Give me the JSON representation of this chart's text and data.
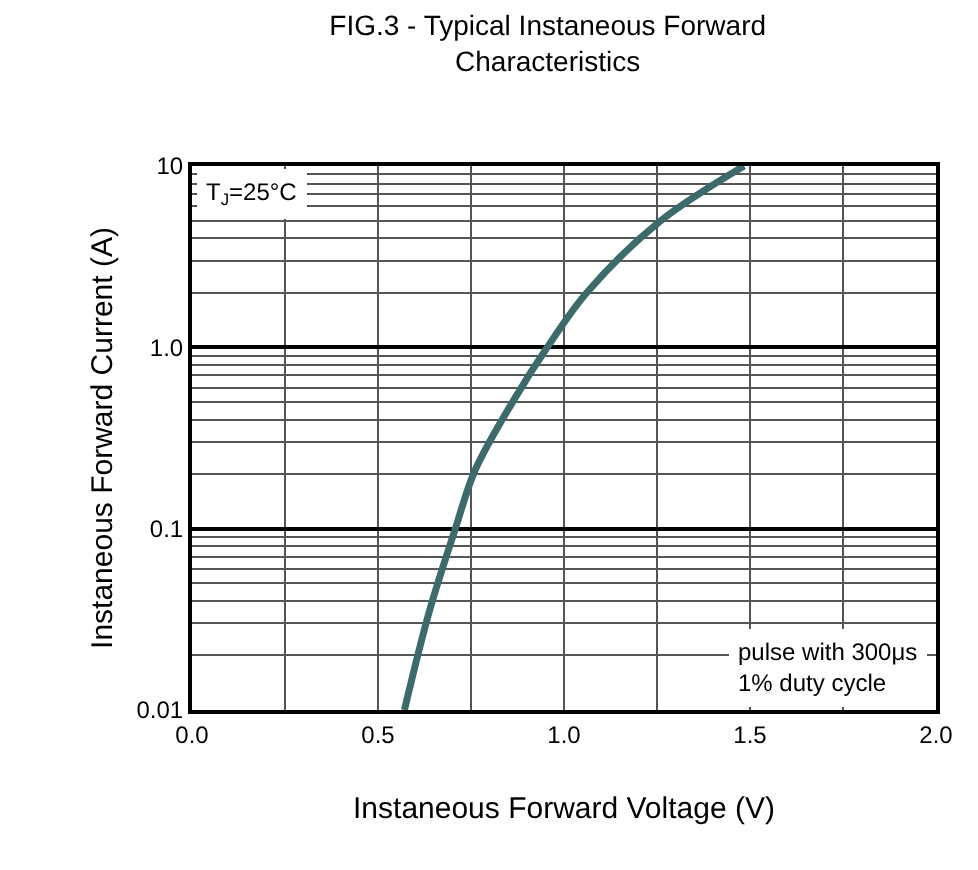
{
  "chart_data": {
    "type": "line",
    "title": "FIG.3 - Typical Instaneous Forward\nCharacteristics",
    "xlabel": "Instaneous Forward Voltage (V)",
    "ylabel": "Instaneous Forward Current (A)",
    "x": [
      0.571,
      0.638,
      0.708,
      0.761,
      0.867,
      0.955,
      1.061,
      1.255,
      1.484
    ],
    "series": [
      {
        "color": "#3d6b6b",
        "values": [
          0.01,
          0.035,
          0.1,
          0.21,
          0.52,
          1.0,
          2.0,
          4.9,
          10
        ]
      }
    ],
    "xlim": [
      0,
      2
    ],
    "xticks": [
      {
        "value": 0,
        "label": "0.0"
      },
      {
        "value": 0.5,
        "label": "0.5"
      },
      {
        "value": 1,
        "label": "1.0"
      },
      {
        "value": 1.5,
        "label": "1.5"
      },
      {
        "value": 2,
        "label": "2.0"
      }
    ],
    "ylim": [
      0.01,
      10
    ],
    "yticks": [
      0.01,
      0.1,
      {
        "value": 1,
        "label": "1.0"
      },
      10
    ],
    "log": "y",
    "grid": true,
    "marker": "none",
    "line_style": "solid",
    "annotations": [
      "T$_{J}$=25°C",
      "pulse with 300μs\n1% duty cycle"
    ]
  }
}
